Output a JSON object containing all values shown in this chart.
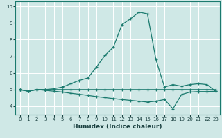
{
  "xlabel": "Humidex (Indice chaleur)",
  "xlim": [
    -0.5,
    23.5
  ],
  "ylim": [
    3.5,
    10.3
  ],
  "xticks": [
    0,
    1,
    2,
    3,
    4,
    5,
    6,
    7,
    8,
    9,
    10,
    11,
    12,
    13,
    14,
    15,
    16,
    17,
    18,
    19,
    20,
    21,
    22,
    23
  ],
  "yticks": [
    4,
    5,
    6,
    7,
    8,
    9,
    10
  ],
  "bg_color": "#cfe8e6",
  "line_color": "#1a7a6e",
  "grid_color": "#ffffff",
  "line1_x": [
    0,
    1,
    2,
    3,
    4,
    5,
    6,
    7,
    8,
    9,
    10,
    11,
    12,
    13,
    14,
    15,
    16,
    17,
    18,
    19,
    20,
    21,
    22,
    23
  ],
  "line1_y": [
    5.0,
    4.9,
    5.0,
    5.0,
    5.05,
    5.15,
    5.35,
    5.55,
    5.7,
    6.35,
    7.05,
    7.55,
    8.9,
    9.25,
    9.65,
    9.55,
    6.8,
    5.15,
    5.3,
    5.2,
    5.3,
    5.35,
    5.3,
    4.9
  ],
  "line2_x": [
    0,
    1,
    2,
    3,
    4,
    5,
    6,
    7,
    8,
    9,
    10,
    11,
    12,
    13,
    14,
    15,
    16,
    17,
    18,
    19,
    20,
    21,
    22,
    23
  ],
  "line2_y": [
    5.0,
    4.9,
    5.0,
    5.0,
    5.0,
    5.0,
    5.0,
    5.0,
    5.0,
    5.0,
    5.0,
    5.0,
    5.0,
    5.0,
    5.0,
    5.0,
    5.0,
    5.0,
    5.0,
    5.0,
    5.0,
    5.0,
    5.0,
    5.0
  ],
  "line3_x": [
    0,
    1,
    2,
    3,
    4,
    5,
    6,
    7,
    8,
    9,
    10,
    11,
    12,
    13,
    14,
    15,
    16,
    17,
    18,
    19,
    20,
    21,
    22,
    23
  ],
  "line3_y": [
    5.0,
    4.9,
    5.0,
    4.95,
    4.9,
    4.85,
    4.78,
    4.72,
    4.65,
    4.58,
    4.52,
    4.46,
    4.4,
    4.35,
    4.3,
    4.25,
    4.3,
    4.4,
    3.85,
    4.7,
    4.85,
    4.88,
    4.88,
    4.9
  ]
}
